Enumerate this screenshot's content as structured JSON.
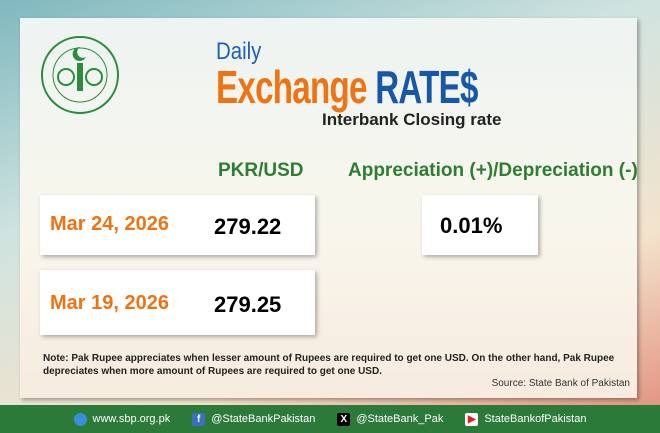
{
  "header": {
    "daily": "Daily",
    "title_part1": "Exchange",
    "title_part2": "RATE$",
    "subtitle": "Interbank Closing rate"
  },
  "logo": {
    "text": "STATE BANK OF PAKISTAN"
  },
  "columns": {
    "rate": "PKR/USD",
    "change": "Appreciation (+)/Depreciation (-)"
  },
  "rows": [
    {
      "date": "Mar 24, 2026",
      "rate": "279.22"
    },
    {
      "date": "Mar 19, 2026",
      "rate": "279.25"
    }
  ],
  "change_value": "0.01%",
  "note": "Note: Pak Rupee appreciates when lesser amount of Rupees are required to get one USD.  On the other hand, Pak Rupee depreciates when more amount of Rupees are required to get one USD.",
  "source": "Source: State Bank of Pakistan",
  "footer": {
    "website": "www.sbp.org.pk",
    "facebook": "@StateBankPakistan",
    "x": "@StateBank_Pak",
    "youtube": "StateBankofPakistan"
  },
  "colors": {
    "orange": "#ee7312",
    "blue": "#1757a8",
    "green": "#2e7d32",
    "footer": "#2b7a3a"
  }
}
